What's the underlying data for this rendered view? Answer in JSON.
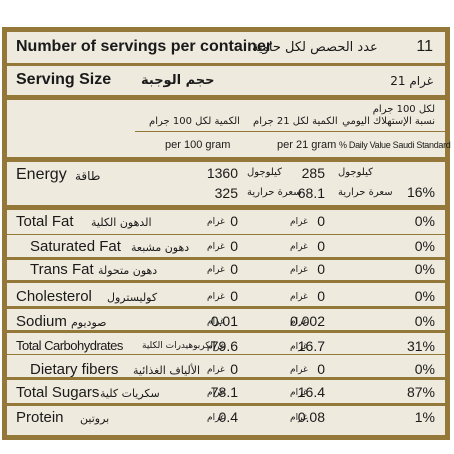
{
  "servings_row": {
    "label_en": "Number of servings per container",
    "label_ar": "عدد الحصص لكل حاوية",
    "value": "11"
  },
  "serving_size_row": {
    "label_en": "Serving Size",
    "label_ar": "حجم الوجبة",
    "value": "21 غرام"
  },
  "columns": {
    "per100_ar": "الكمية لكل 100 جرام",
    "per100_en": "per 100 gram",
    "per21_ar": "الكمية لكل 21 جرام",
    "per21_en": "per 21 gram",
    "dv_ar_1": "لكل 100 جرام",
    "dv_ar_2": "نسبة الإستهلاك اليومي",
    "dv_en": "% Daily Value Saudi Standard"
  },
  "energy": {
    "label_en": "Energy",
    "label_ar": "طاقة",
    "kj_100": "1360",
    "kj_unit_100": "كيلوجول",
    "kcal_100": "325",
    "kcal_unit_100": "سعرة حرارية",
    "kj_21": "285",
    "kj_unit_21": "كيلوجول",
    "kcal_21": "68.1",
    "kcal_unit_21": "سعرة حرارية",
    "dv": "16%"
  },
  "rows": [
    {
      "en": "Total Fat",
      "ar": "الدهون الكلية",
      "v100": "0",
      "u100": "غرام",
      "v21": "0",
      "u21": "غرام",
      "dv": "0%"
    },
    {
      "en": "Saturated Fat",
      "ar": "دهون مشبعة",
      "v100": "0",
      "u100": "غرام",
      "v21": "0",
      "u21": "غرام",
      "dv": "0%"
    },
    {
      "en": "Trans Fat",
      "ar": "دهون متحولة",
      "v100": "0",
      "u100": "غرام",
      "v21": "0",
      "u21": "غرام",
      "dv": "0%"
    },
    {
      "en": "Cholesterol",
      "ar": "كوليسترول",
      "v100": "0",
      "u100": "غرام",
      "v21": "0",
      "u21": "غرام",
      "dv": "0%"
    },
    {
      "en": "Sodium",
      "ar": "صوديوم",
      "v100": "0.01",
      "u100": "غرام",
      "v21": "0.002",
      "u21": "غرام",
      "dv": "0%"
    },
    {
      "en": "Total Carbohydrates",
      "ar": "الكربوهيدرات الكلية",
      "v100": "79.6",
      "u100": "غرام",
      "v21": "16.7",
      "u21": "غرام",
      "dv": "31%"
    },
    {
      "en": "Dietary fibers",
      "ar": "الألياف الغذائية",
      "v100": "0",
      "u100": "غرام",
      "v21": "0",
      "u21": "غرام",
      "dv": "0%"
    },
    {
      "en": "Total Sugars",
      "ar": "سكريات كلية",
      "v100": "78.1",
      "u100": "غرام",
      "v21": "16.4",
      "u21": "غرام",
      "dv": "87%"
    },
    {
      "en": "Protein",
      "ar": "بروتين",
      "v100": "0.4",
      "u100": "غرام",
      "v21": "0.08",
      "u21": "غرام",
      "dv": "1%"
    }
  ]
}
